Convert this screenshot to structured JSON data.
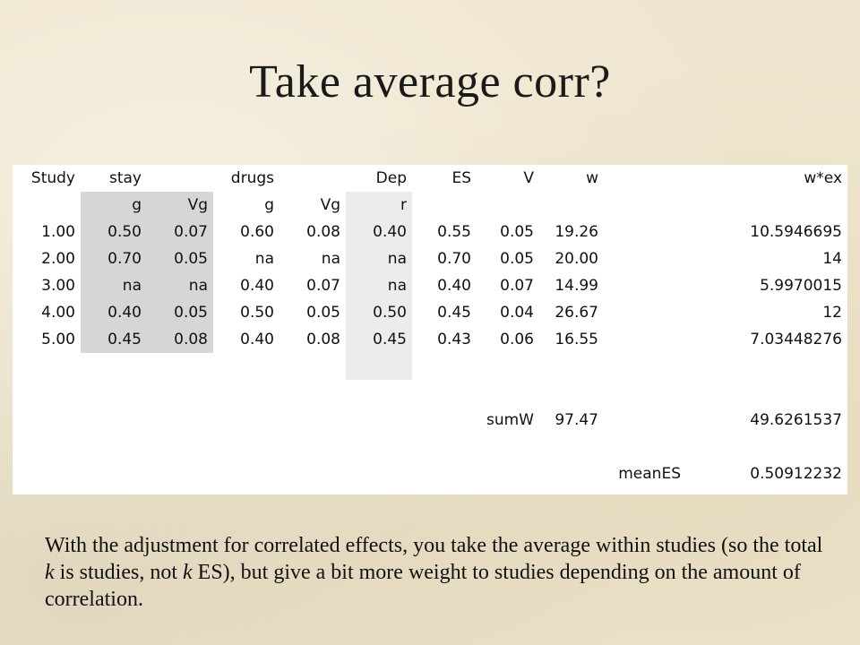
{
  "title": "Take average corr?",
  "table": {
    "rows": [
      [
        "Study",
        "stay",
        "",
        "drugs",
        "",
        "Dep",
        "ES",
        "V",
        "w",
        "",
        "w*ex"
      ],
      [
        "",
        "g",
        "Vg",
        "g",
        "Vg",
        "r",
        "",
        "",
        "",
        "",
        ""
      ],
      [
        "1.00",
        "0.50",
        "0.07",
        "0.60",
        "0.08",
        "0.40",
        "0.55",
        "0.05",
        "19.26",
        "",
        "10.5946695"
      ],
      [
        "2.00",
        "0.70",
        "0.05",
        "na",
        "na",
        "na",
        "0.70",
        "0.05",
        "20.00",
        "",
        "14"
      ],
      [
        "3.00",
        "na",
        "na",
        "0.40",
        "0.07",
        "na",
        "0.40",
        "0.07",
        "14.99",
        "",
        "5.9970015"
      ],
      [
        "4.00",
        "0.40",
        "0.05",
        "0.50",
        "0.05",
        "0.50",
        "0.45",
        "0.04",
        "26.67",
        "",
        "12"
      ],
      [
        "5.00",
        "0.45",
        "0.08",
        "0.40",
        "0.08",
        "0.45",
        "0.43",
        "0.06",
        "16.55",
        "",
        "7.03448276"
      ],
      [
        "",
        "",
        "",
        "",
        "",
        "",
        "",
        "",
        "",
        "",
        ""
      ],
      [
        "",
        "",
        "",
        "",
        "",
        "",
        "",
        "",
        "",
        "",
        ""
      ],
      [
        "",
        "",
        "",
        "",
        "",
        "",
        "",
        "sumW",
        "97.47",
        "",
        "49.6261537"
      ],
      [
        "",
        "",
        "",
        "",
        "",
        "",
        "",
        "",
        "",
        "",
        ""
      ],
      [
        "",
        "",
        "",
        "",
        "",
        "",
        "",
        "",
        "",
        "meanES",
        "0.50912232"
      ]
    ]
  },
  "caption": {
    "p1": "With the adjustment for correlated effects, you take the average within studies (so the total ",
    "k1": "k",
    "p2": " is studies, not ",
    "k2": "k",
    "p3": " ES), but give a bit more weight to studies depending on the amount of correlation."
  }
}
